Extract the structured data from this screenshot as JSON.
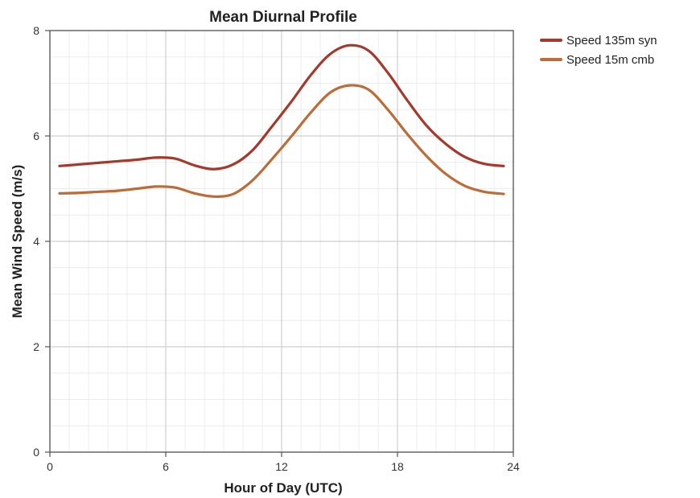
{
  "chart_data": {
    "type": "line",
    "title": "Mean Diurnal Profile",
    "xlabel": "Hour of Day (UTC)",
    "ylabel": "Mean Wind Speed (m/s)",
    "xlim": [
      0,
      24
    ],
    "ylim": [
      0,
      8
    ],
    "x_ticks": [
      "0",
      "6",
      "12",
      "18",
      "24"
    ],
    "y_ticks": [
      "0",
      "2",
      "4",
      "6",
      "8"
    ],
    "grid": true,
    "legend_position": "right",
    "x": [
      0.5,
      1.5,
      2.5,
      3.5,
      4.5,
      5.5,
      6.5,
      7.5,
      8.5,
      9.5,
      10.5,
      11.5,
      12.5,
      13.5,
      14.5,
      15.5,
      16.5,
      17.5,
      18.5,
      19.5,
      20.5,
      21.5,
      22.5,
      23.5
    ],
    "series": [
      {
        "name": "Speed 135m syn",
        "color": "#a33a2c",
        "values": [
          5.43,
          5.46,
          5.49,
          5.52,
          5.55,
          5.59,
          5.57,
          5.44,
          5.37,
          5.46,
          5.73,
          6.18,
          6.65,
          7.15,
          7.55,
          7.72,
          7.62,
          7.2,
          6.68,
          6.2,
          5.85,
          5.6,
          5.47,
          5.43
        ]
      },
      {
        "name": "Speed 15m cmb",
        "color": "#bc6c38",
        "values": [
          4.91,
          4.92,
          4.94,
          4.96,
          5.0,
          5.04,
          5.02,
          4.91,
          4.85,
          4.9,
          5.16,
          5.56,
          5.99,
          6.44,
          6.82,
          6.96,
          6.88,
          6.5,
          6.04,
          5.62,
          5.28,
          5.05,
          4.94,
          4.9
        ]
      }
    ]
  }
}
